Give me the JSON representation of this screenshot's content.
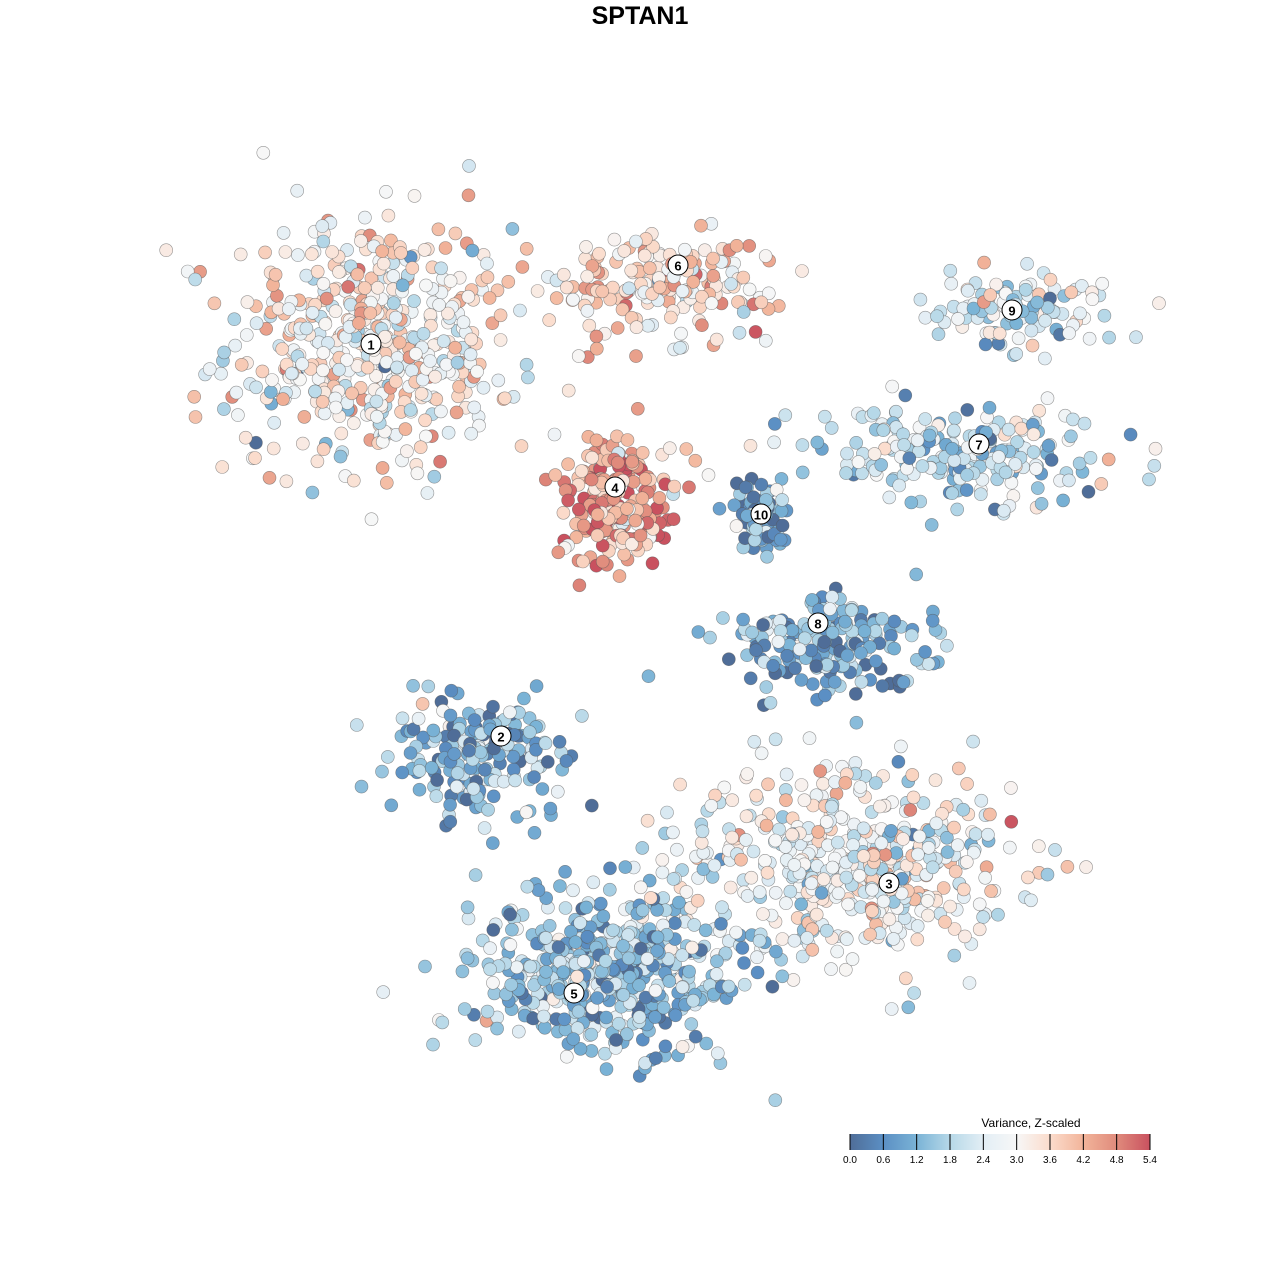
{
  "chart_data": {
    "type": "scatter",
    "title": "SPTAN1",
    "xlabel": "",
    "ylabel": "",
    "xlim": [
      -47,
      48
    ],
    "ylim": [
      -47,
      46
    ],
    "grid": false,
    "legend": {
      "title": "Variance, Z-scaled",
      "placement": "bottom-right",
      "range": [
        0,
        5.4
      ],
      "ticks": [
        "0.0",
        "0.6",
        "1.2",
        "1.8",
        "2.4",
        "3.0",
        "3.6",
        "4.2",
        "4.8",
        "5.4"
      ],
      "colors": [
        "#4f6d98",
        "#5b8fc4",
        "#7ab3d6",
        "#b6d8e8",
        "#e3eef5",
        "#f7f7f7",
        "#fbdccc",
        "#f2b49a",
        "#e08b7c",
        "#c9515f"
      ]
    },
    "clusters": [
      {
        "label": "1",
        "x": -29.4,
        "y": 29.3,
        "sx": 9.5,
        "sy": 8.5,
        "n": 520,
        "mean_expr": 3.1
      },
      {
        "label": "2",
        "x": -18.4,
        "y": -11.9,
        "sx": 6.5,
        "sy": 4.2,
        "n": 200,
        "mean_expr": 1.2
      },
      {
        "label": "3",
        "x": 18.4,
        "y": -22.6,
        "sx": 11,
        "sy": 6.5,
        "n": 480,
        "mean_expr": 2.8
      },
      {
        "label": "4",
        "x": -5.0,
        "y": 14.0,
        "sx": 4,
        "sy": 4.5,
        "n": 220,
        "mean_expr": 4.3
      },
      {
        "label": "5",
        "x": -5.1,
        "y": -33.6,
        "sx": 9,
        "sy": 5.5,
        "n": 520,
        "mean_expr": 1.5
      },
      {
        "label": "6",
        "x": -0.7,
        "y": 35.2,
        "sx": 8,
        "sy": 3.2,
        "n": 180,
        "mean_expr": 3.5
      },
      {
        "label": "7",
        "x": 29.4,
        "y": 18.3,
        "sx": 10,
        "sy": 3,
        "n": 220,
        "mean_expr": 2.0
      },
      {
        "label": "8",
        "x": 17.3,
        "y": -0.6,
        "sx": 7,
        "sy": 3,
        "n": 200,
        "mean_expr": 1.0
      },
      {
        "label": "9",
        "x": 34.7,
        "y": 32.7,
        "sx": 6,
        "sy": 2.6,
        "n": 110,
        "mean_expr": 2.2
      },
      {
        "label": "10",
        "x": 9.6,
        "y": 12.3,
        "sx": 1.8,
        "sy": 2.8,
        "n": 70,
        "mean_expr": 0.9
      }
    ],
    "label_positions": [
      {
        "label": "1",
        "x": -29.4,
        "y": 29.3
      },
      {
        "label": "2",
        "x": -16.4,
        "y": -9.9
      },
      {
        "label": "3",
        "x": 22.4,
        "y": -24.6
      },
      {
        "label": "4",
        "x": -5.0,
        "y": 15.0
      },
      {
        "label": "5",
        "x": -9.1,
        "y": -35.6
      },
      {
        "label": "6",
        "x": 1.3,
        "y": 37.2
      },
      {
        "label": "7",
        "x": 31.4,
        "y": 19.3
      },
      {
        "label": "8",
        "x": 15.3,
        "y": 1.4
      },
      {
        "label": "9",
        "x": 34.7,
        "y": 32.7
      },
      {
        "label": "10",
        "x": 9.6,
        "y": 12.3
      }
    ]
  }
}
